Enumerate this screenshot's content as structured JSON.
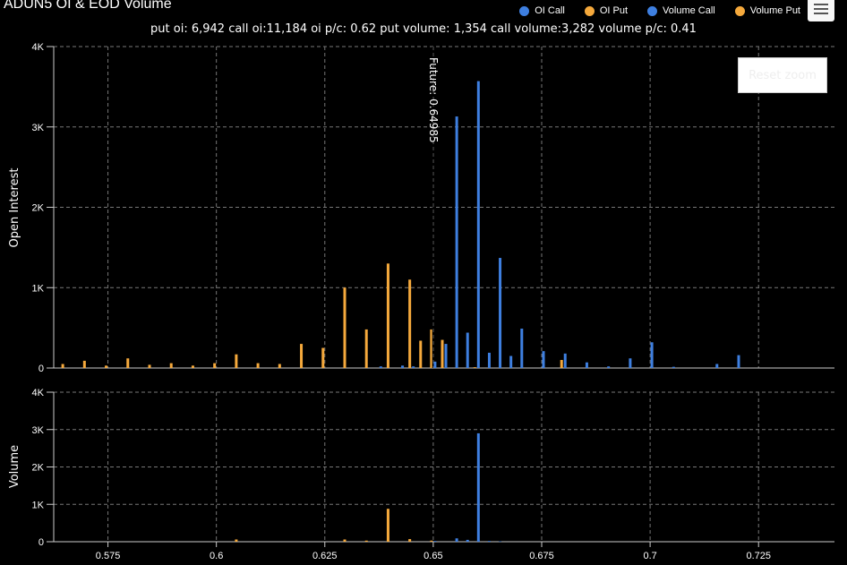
{
  "title": "ADUN5 OI & EOD Volume",
  "subtitle": "put oi: 6,942 call oi:11,184 oi p/c: 0.62 put volume: 1,354 call volume:3,282 volume p/c: 0.41",
  "legend": [
    {
      "label": "OI Call",
      "color": "#3e7fe0"
    },
    {
      "label": "OI Put",
      "color": "#f5a93c"
    },
    {
      "label": "Volume Call",
      "color": "#3e7fe0"
    },
    {
      "label": "Volume Put",
      "color": "#f5a93c"
    }
  ],
  "menu_icon": "hamburger-menu-icon",
  "reset_zoom_label": "Reset zoom",
  "future_label": "Future: 0.64985",
  "chart_data": [
    {
      "type": "bar",
      "ylabel": "Open Interest",
      "ylim": [
        0,
        4000
      ],
      "yticks": [
        "0",
        "1K",
        "2K",
        "3K",
        "4K"
      ],
      "xlim": [
        0.5625,
        0.7425
      ],
      "xticks": [
        "0.575",
        "0.6",
        "0.625",
        "0.65",
        "0.675",
        "0.7",
        "0.725"
      ],
      "future_line": 0.64985,
      "grid": true,
      "series": [
        {
          "name": "OI Put",
          "color": "#f5a93c",
          "x": [
            0.565,
            0.57,
            0.575,
            0.58,
            0.585,
            0.59,
            0.595,
            0.6,
            0.605,
            0.61,
            0.615,
            0.62,
            0.625,
            0.63,
            0.635,
            0.64,
            0.645,
            0.6475,
            0.65,
            0.6525,
            0.66,
            0.68
          ],
          "values": [
            50,
            90,
            30,
            120,
            40,
            60,
            30,
            60,
            170,
            60,
            50,
            300,
            250,
            1000,
            480,
            1300,
            1100,
            340,
            480,
            350,
            10,
            100
          ]
        },
        {
          "name": "OI Call",
          "color": "#3e7fe0",
          "x": [
            0.6375,
            0.6425,
            0.645,
            0.65,
            0.6525,
            0.655,
            0.6575,
            0.66,
            0.6625,
            0.665,
            0.6675,
            0.67,
            0.675,
            0.68,
            0.685,
            0.69,
            0.695,
            0.7,
            0.705,
            0.715,
            0.72
          ],
          "values": [
            20,
            30,
            20,
            80,
            300,
            3130,
            440,
            3570,
            190,
            1370,
            150,
            490,
            210,
            180,
            70,
            20,
            120,
            320,
            15,
            50,
            160
          ]
        }
      ]
    },
    {
      "type": "bar",
      "ylabel": "Volume",
      "ylim": [
        0,
        4000
      ],
      "yticks": [
        "0",
        "1K",
        "2K",
        "3K",
        "4K"
      ],
      "grid": true,
      "series": [
        {
          "name": "Volume Put",
          "color": "#f5a93c",
          "x": [
            0.605,
            0.63,
            0.635,
            0.64,
            0.645,
            0.65
          ],
          "values": [
            60,
            60,
            30,
            880,
            70,
            30
          ]
        },
        {
          "name": "Volume Call",
          "color": "#3e7fe0",
          "x": [
            0.65,
            0.655,
            0.6575,
            0.66,
            0.6625,
            0.665
          ],
          "values": [
            20,
            90,
            50,
            2900,
            20,
            10
          ]
        }
      ]
    }
  ]
}
